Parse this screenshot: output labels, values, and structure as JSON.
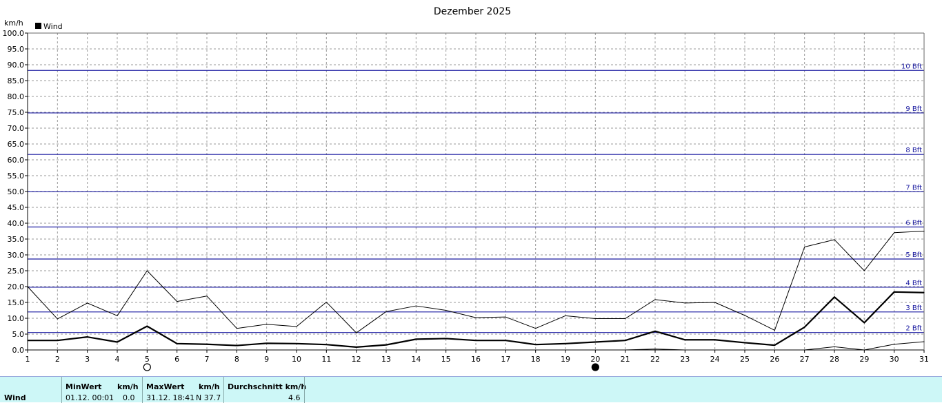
{
  "chart_data": {
    "type": "line",
    "title": "Dezember 2025",
    "ylabel": "km/h",
    "ylim": [
      0,
      100
    ],
    "y_ticks": [
      "0.0",
      "5.0",
      "10.0",
      "15.0",
      "20.0",
      "25.0",
      "30.0",
      "35.0",
      "40.0",
      "45.0",
      "50.0",
      "55.0",
      "60.0",
      "65.0",
      "70.0",
      "75.0",
      "80.0",
      "85.0",
      "90.0",
      "95.0",
      "100.0"
    ],
    "x": [
      1,
      2,
      3,
      4,
      5,
      6,
      7,
      8,
      9,
      10,
      11,
      12,
      13,
      14,
      15,
      16,
      17,
      18,
      19,
      20,
      21,
      22,
      23,
      24,
      25,
      26,
      27,
      28,
      29,
      30,
      31
    ],
    "x_ticks": [
      "1",
      "2",
      "3",
      "4",
      "5",
      "6",
      "7",
      "8",
      "9",
      "10",
      "11",
      "12",
      "13",
      "14",
      "15",
      "16",
      "17",
      "18",
      "19",
      "20",
      "21",
      "22",
      "23",
      "24",
      "25",
      "26",
      "27",
      "28",
      "29",
      "30",
      "31"
    ],
    "grid": true,
    "legend": {
      "position": "top-left",
      "entries": [
        "Wind"
      ]
    },
    "series": [
      {
        "name": "Wind",
        "role": "mean",
        "color": "#000000",
        "values": [
          3.0,
          3.0,
          4.1,
          2.5,
          7.5,
          2.0,
          1.8,
          1.4,
          2.1,
          2.0,
          1.7,
          0.9,
          1.6,
          3.4,
          3.6,
          3.0,
          3.0,
          1.7,
          2.0,
          2.5,
          3.0,
          5.9,
          3.2,
          3.2,
          2.3,
          1.5,
          7.2,
          16.7,
          8.6,
          18.3,
          18.1
        ]
      },
      {
        "role": "max",
        "color": "#000000",
        "values": [
          20.0,
          9.8,
          14.8,
          10.8,
          25.0,
          15.3,
          17.0,
          6.8,
          8.1,
          7.4,
          15.1,
          5.4,
          12.1,
          13.9,
          12.5,
          10.2,
          10.4,
          6.8,
          10.8,
          9.9,
          9.9,
          15.9,
          14.8,
          15.0,
          10.9,
          6.2,
          32.5,
          34.8,
          25.0,
          37.0,
          37.5
        ]
      },
      {
        "role": "min",
        "color": "#000000",
        "values": [
          null,
          null,
          null,
          null,
          null,
          null,
          null,
          null,
          null,
          null,
          null,
          null,
          null,
          null,
          null,
          null,
          null,
          null,
          null,
          null,
          0.0,
          0.3,
          0.0,
          null,
          null,
          null,
          0.0,
          1.0,
          0.0,
          1.8,
          2.6
        ]
      }
    ],
    "beaufort_lines": [
      {
        "label": "2 Bft",
        "value": 5.5
      },
      {
        "label": "3 Bft",
        "value": 12.0
      },
      {
        "label": "4 Bft",
        "value": 19.8
      },
      {
        "label": "5 Bft",
        "value": 28.7
      },
      {
        "label": "6 Bft",
        "value": 38.8
      },
      {
        "label": "7 Bft",
        "value": 49.9
      },
      {
        "label": "8 Bft",
        "value": 61.7
      },
      {
        "label": "9 Bft",
        "value": 74.8
      },
      {
        "label": "10 Bft",
        "value": 88.2
      }
    ],
    "reference_line_color": "#1a1aa0",
    "moon_markers": [
      {
        "day": 5,
        "phase": "full-moon"
      },
      {
        "day": 20,
        "phase": "new-moon"
      }
    ]
  },
  "stats": {
    "row_label": "Wind",
    "min_header": "MinWert",
    "min_unit": "km/h",
    "min_time": "01.12.  00:01",
    "min_value": "0.0",
    "max_header": "MaxWert",
    "max_unit": "km/h",
    "max_time": "31.12.  18:41",
    "max_value": "N 37.7",
    "avg_header": "Durchschnitt km/h",
    "avg_value": "4.6"
  },
  "colors": {
    "panel_bg": "#cdf7f7",
    "grid": "#9a9a9a",
    "axis": "#000000"
  }
}
